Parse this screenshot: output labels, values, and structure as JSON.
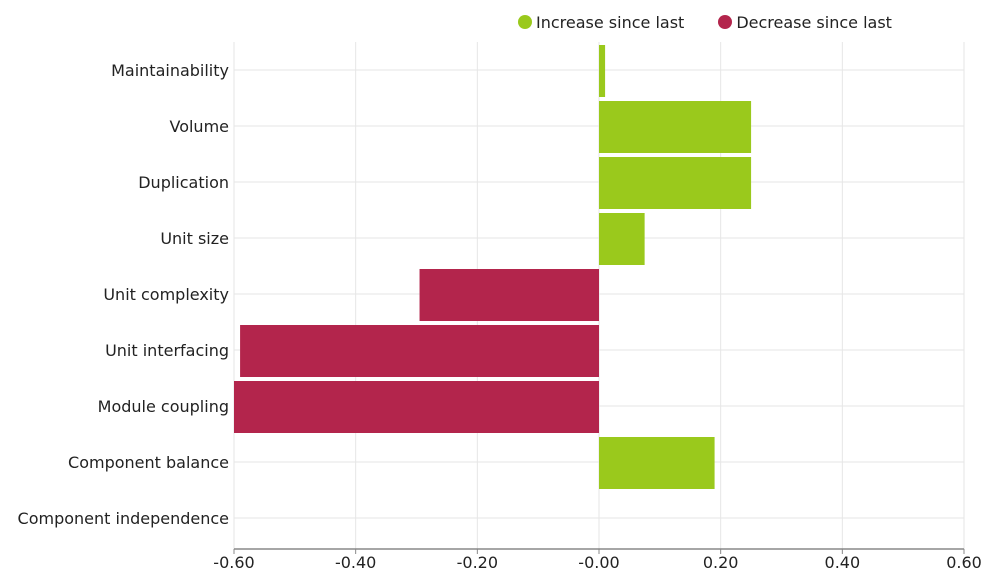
{
  "colors": {
    "increase": "#9ac91c",
    "decrease": "#b3254c",
    "grid": "#e6e6e6",
    "axis": "#888888",
    "text": "#222222"
  },
  "legend": {
    "increase_label": "Increase since last",
    "decrease_label": "Decrease since last"
  },
  "chart_data": {
    "type": "bar",
    "orientation": "horizontal",
    "legend_position": "top-right",
    "grid": true,
    "categories": [
      "Maintainability",
      "Volume",
      "Duplication",
      "Unit size",
      "Unit complexity",
      "Unit interfacing",
      "Module coupling",
      "Component balance",
      "Component independence"
    ],
    "values": [
      0.01,
      0.25,
      0.25,
      0.075,
      -0.295,
      -0.59,
      -0.6,
      0.19,
      0.0
    ],
    "xlim": [
      -0.6,
      0.6
    ],
    "xticks": [
      -0.6,
      -0.4,
      -0.2,
      0.0,
      0.2,
      0.4,
      0.6
    ],
    "xtick_labels": [
      "-0.60",
      "-0.40",
      "-0.20",
      "-0.00",
      "0.20",
      "0.40",
      "0.60"
    ],
    "series": [
      {
        "name": "Increase since last"
      },
      {
        "name": "Decrease since last"
      }
    ]
  }
}
